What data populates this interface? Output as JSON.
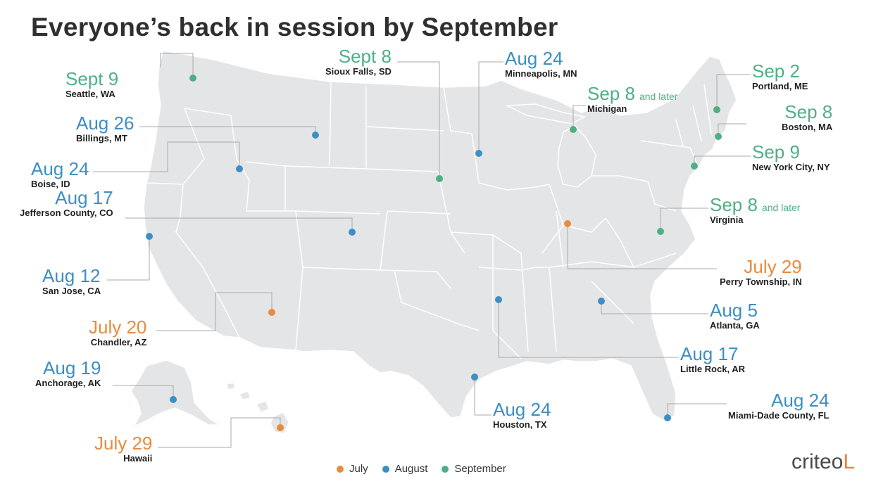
{
  "title": "Everyone’s back in session by September",
  "colors": {
    "July": "#e88b3f",
    "August": "#3d8fc3",
    "September": "#4faf84",
    "land": "#e4e5e7",
    "border": "#ffffff",
    "leader": "#a9a9a9",
    "brand_mark": "#e8813b"
  },
  "legend": [
    {
      "label": "July",
      "key": "July"
    },
    {
      "label": "August",
      "key": "August"
    },
    {
      "label": "September",
      "key": "September"
    }
  ],
  "locations": [
    {
      "date": "Sept 9",
      "place": "Seattle, WA",
      "month": "September"
    },
    {
      "date": "Sept 8",
      "place": "Sioux Falls, SD",
      "month": "September"
    },
    {
      "date": "Aug 24",
      "place": "Minneapolis, MN",
      "month": "August"
    },
    {
      "date": "Sep 2",
      "place": "Portland, ME",
      "month": "September"
    },
    {
      "date": "Sep 8",
      "qualifier": "and later",
      "place": "Michigan",
      "month": "September"
    },
    {
      "date": "Sep 8",
      "place": "Boston, MA",
      "month": "September"
    },
    {
      "date": "Aug 26",
      "place": "Billings, MT",
      "month": "August"
    },
    {
      "date": "Sep 9",
      "place": "New York City, NY",
      "month": "September"
    },
    {
      "date": "Aug 24",
      "place": "Boise, ID",
      "month": "August"
    },
    {
      "date": "Aug 17",
      "place": "Jefferson County, CO",
      "month": "August"
    },
    {
      "date": "Sep 8",
      "qualifier": "and later",
      "place": "Virginia",
      "month": "September"
    },
    {
      "date": "Aug 12",
      "place": "San Jose, CA",
      "month": "August"
    },
    {
      "date": "July 29",
      "place": "Perry Township, IN",
      "month": "July"
    },
    {
      "date": "Aug 5",
      "place": "Atlanta, GA",
      "month": "August"
    },
    {
      "date": "July 20",
      "place": "Chandler, AZ",
      "month": "July"
    },
    {
      "date": "Aug 17",
      "place": "Little Rock, AR",
      "month": "August"
    },
    {
      "date": "Aug 19",
      "place": "Anchorage, AK",
      "month": "August"
    },
    {
      "date": "Aug 24",
      "place": "Miami-Dade County, FL",
      "month": "August"
    },
    {
      "date": "Aug 24",
      "place": "Houston, TX",
      "month": "August"
    },
    {
      "date": "July 29",
      "place": "Hawaii",
      "month": "July"
    }
  ],
  "brand": {
    "name": "criteo",
    "mark": "L",
    "logo_icon": "criteo-logo-icon"
  }
}
